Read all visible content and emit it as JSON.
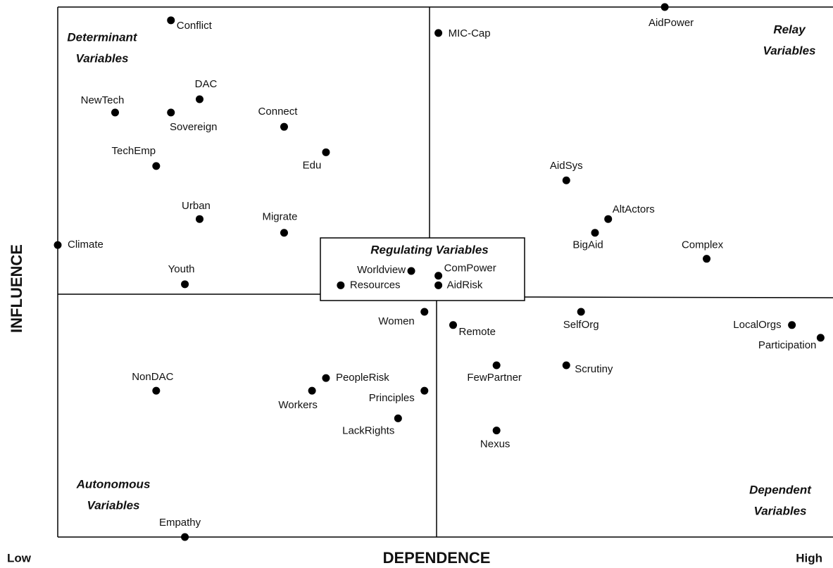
{
  "chart_data": {
    "type": "scatter",
    "x_label": "DEPENDENCE",
    "y_label": "INFLUENCE",
    "x_low_label": "Low",
    "x_high_label": "High",
    "quadrant_labels": {
      "determinant": [
        "Determinant",
        "Variables"
      ],
      "relay": [
        "Relay",
        "Variables"
      ],
      "autonomous": [
        "Autonomous",
        "Variables"
      ],
      "dependent": [
        "Dependent",
        "Variables"
      ],
      "regulating": "Regulating Variables"
    },
    "xlim": [
      0,
      100
    ],
    "ylim": [
      0,
      100
    ],
    "color": "#000000",
    "point_labels": [
      "Conflict",
      "NewTech",
      "DAC",
      "Sovereign",
      "Connect",
      "Edu",
      "TechEmp",
      "Urban",
      "Migrate",
      "Climate",
      "Youth",
      "MIC-Cap",
      "AidPower",
      "AidSys",
      "AltActors",
      "BigAid",
      "Complex",
      "Worldview",
      "Resources",
      "ComPower",
      "AidRisk",
      "Women",
      "Remote",
      "SelfOrg",
      "LocalOrgs",
      "Participation",
      "FewPartner",
      "Scrutiny",
      "PeopleRisk",
      "Workers",
      "Principles",
      "LackRights",
      "Nexus",
      "NonDAC",
      "Empathy"
    ],
    "x": [
      14.6,
      7.4,
      18.3,
      14.6,
      29.2,
      34.6,
      12.7,
      18.3,
      29.2,
      0,
      16.4,
      49.1,
      78.3,
      65.6,
      71.0,
      69.3,
      83.7,
      45.6,
      36.5,
      49.1,
      49.1,
      47.3,
      51.0,
      67.5,
      94.7,
      98.4,
      56.6,
      65.6,
      34.6,
      32.8,
      47.3,
      43.9,
      56.6,
      12.7,
      16.4
    ],
    "values": [
      97.5,
      80.1,
      82.6,
      80.1,
      77.4,
      72.6,
      70.0,
      60.0,
      57.4,
      55.1,
      47.7,
      95.1,
      100,
      67.3,
      60.0,
      57.4,
      52.5,
      50.2,
      47.5,
      49.3,
      47.5,
      42.5,
      40.0,
      42.5,
      40.0,
      37.6,
      32.4,
      32.4,
      30.0,
      27.6,
      27.6,
      22.4,
      20.1,
      27.6,
      0
    ]
  }
}
